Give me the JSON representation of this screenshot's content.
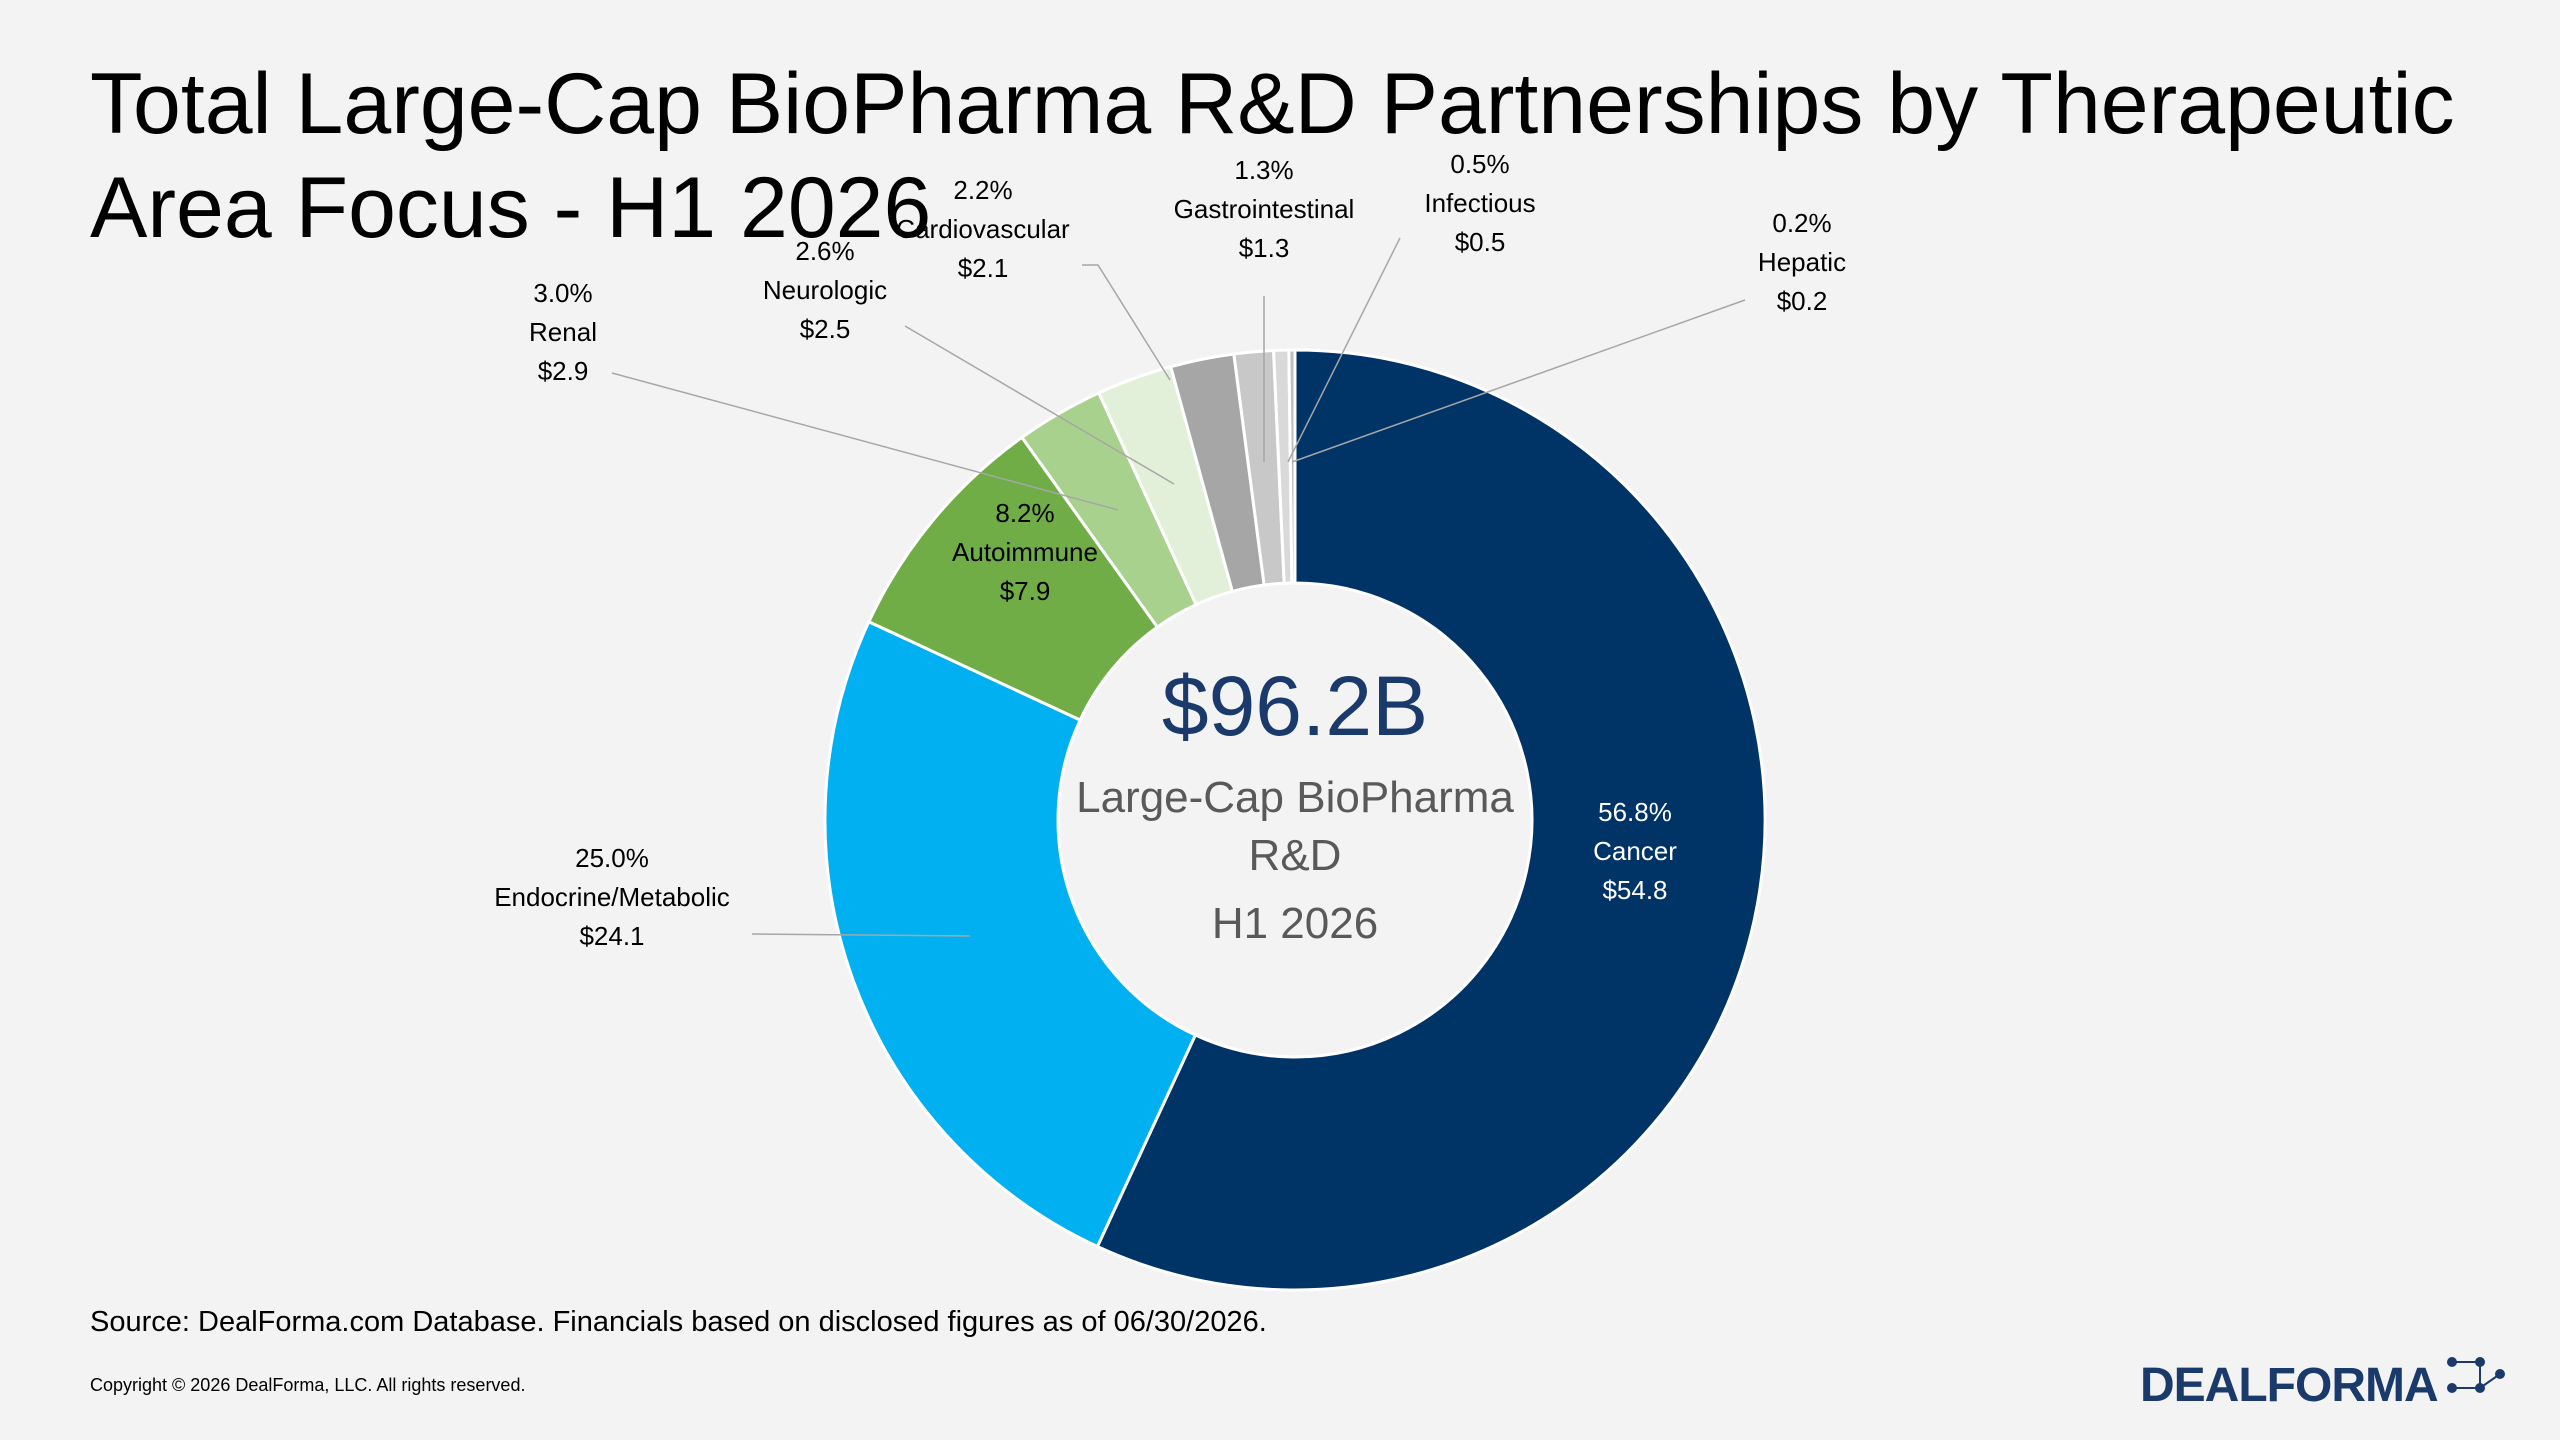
{
  "slide": {
    "title_line1": "Total Large-Cap BioPharma R&D Partnerships by Therapeutic",
    "title_line2": "Area Focus - H1 2026",
    "source": "Source: DealForma.com Database. Financials based on disclosed figures as of 06/30/2026.",
    "copyright": "Copyright © 2026 DealForma, LLC. All rights reserved.",
    "logo_text": "DEALFORMA",
    "logo_icon": "network-dots-icon"
  },
  "chart_data": {
    "type": "pie",
    "variant": "donut",
    "center_total": "$96.2B",
    "center_lines": [
      "Large-Cap BioPharma",
      "R&D",
      "H1 2026"
    ],
    "slices": [
      {
        "name": "Cancer",
        "percent": "56.8%",
        "value": 54.8,
        "value_label": "$54.8",
        "color": "#003366"
      },
      {
        "name": "Endocrine/Metabolic",
        "percent": "25.0%",
        "value": 24.1,
        "value_label": "$24.1",
        "color": "#00b0f0"
      },
      {
        "name": "Autoimmune",
        "percent": "8.2%",
        "value": 7.9,
        "value_label": "$7.9",
        "color": "#70ad47"
      },
      {
        "name": "Renal",
        "percent": "3.0%",
        "value": 2.9,
        "value_label": "$2.9",
        "color": "#a9d18e"
      },
      {
        "name": "Neurologic",
        "percent": "2.6%",
        "value": 2.5,
        "value_label": "$2.5",
        "color": "#e2f0d9"
      },
      {
        "name": "Cardiovascular",
        "percent": "2.2%",
        "value": 2.1,
        "value_label": "$2.1",
        "color": "#a6a6a6"
      },
      {
        "name": "Gastrointestinal",
        "percent": "1.3%",
        "value": 1.3,
        "value_label": "$1.3",
        "color": "#c8c8c8"
      },
      {
        "name": "Infectious",
        "percent": "0.5%",
        "value": 0.5,
        "value_label": "$0.5",
        "color": "#d9d9d9"
      },
      {
        "name": "Hepatic",
        "percent": "0.2%",
        "value": 0.2,
        "value_label": "$0.2",
        "color": "#bfbfbf"
      }
    ],
    "start_angle_deg": 0,
    "direction": "clockwise"
  }
}
